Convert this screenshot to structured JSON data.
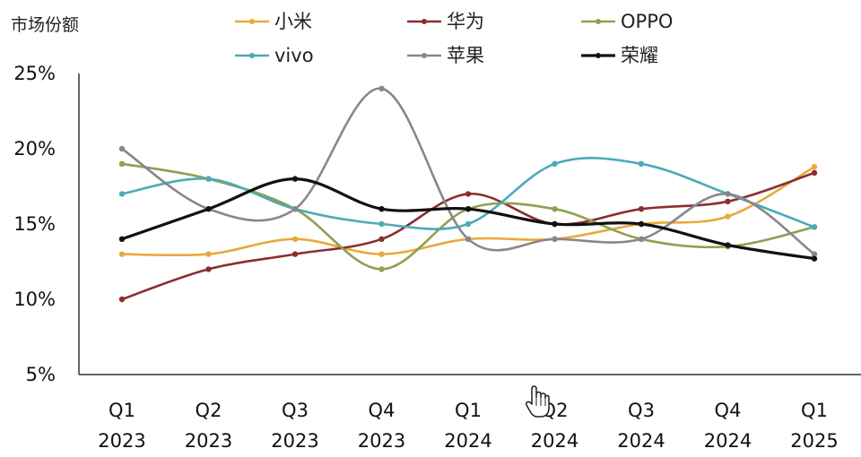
{
  "chart_data": {
    "type": "line",
    "ylabel": "市场份额",
    "yticks": [
      "25%",
      "20%",
      "15%",
      "10%",
      "5%"
    ],
    "ylim": [
      5,
      25
    ],
    "categories": [
      {
        "q": "Q1",
        "y": "2023"
      },
      {
        "q": "Q2",
        "y": "2023"
      },
      {
        "q": "Q3",
        "y": "2023"
      },
      {
        "q": "Q4",
        "y": "2023"
      },
      {
        "q": "Q1",
        "y": "2024"
      },
      {
        "q": "Q2",
        "y": "2024"
      },
      {
        "q": "Q3",
        "y": "2024"
      },
      {
        "q": "Q4",
        "y": "2024"
      },
      {
        "q": "Q1",
        "y": "2025"
      }
    ],
    "series": [
      {
        "name": "小米",
        "color": "#E8A93A",
        "values": [
          13,
          13,
          14,
          13,
          14,
          14,
          15,
          15.5,
          18.8
        ]
      },
      {
        "name": "华为",
        "color": "#8B2E2E",
        "values": [
          10,
          12,
          13,
          14,
          17,
          15,
          16,
          16.5,
          18.4
        ]
      },
      {
        "name": "OPPO",
        "color": "#8FA04E",
        "values": [
          19,
          18,
          16,
          12,
          16,
          16,
          14,
          13.5,
          14.8
        ]
      },
      {
        "name": "vivo",
        "color": "#4BAAB8",
        "values": [
          17,
          18,
          16,
          15,
          15,
          19,
          19,
          17,
          14.8
        ]
      },
      {
        "name": "苹果",
        "color": "#8C8490",
        "values": [
          20,
          16,
          16,
          24,
          14,
          14,
          14,
          17,
          13
        ]
      },
      {
        "name": "荣耀",
        "color": "#111111",
        "values": [
          14,
          16,
          18,
          16,
          16,
          15,
          15,
          13.6,
          12.7
        ]
      }
    ],
    "legend_placement": "top"
  }
}
